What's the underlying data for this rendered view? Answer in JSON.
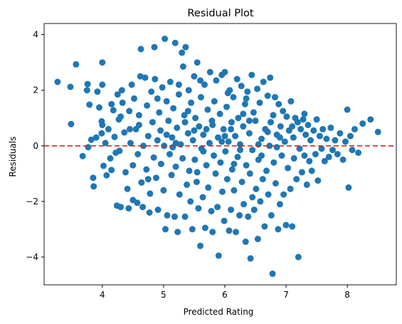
{
  "chart_data": {
    "type": "scatter",
    "title": "Residual Plot",
    "xlabel": "Predicted Rating",
    "ylabel": "Residuals",
    "xlim": [
      3.05,
      8.8
    ],
    "ylim": [
      -5.0,
      4.4
    ],
    "xticks": [
      4,
      5,
      6,
      7,
      8
    ],
    "yticks": [
      -4,
      -2,
      0,
      2,
      4
    ],
    "ytick_labels": [
      "−4",
      "−2",
      "0",
      "2",
      "4"
    ],
    "reference_line": {
      "y": 0,
      "color": "#d62728",
      "style": "dashed"
    },
    "point_color": "#1f77b4",
    "grid": false,
    "points": [
      [
        3.27,
        2.3
      ],
      [
        3.48,
        2.12
      ],
      [
        3.57,
        2.93
      ],
      [
        3.49,
        0.78
      ],
      [
        3.68,
        -0.37
      ],
      [
        3.75,
        2.0
      ],
      [
        3.76,
        2.22
      ],
      [
        3.77,
        -0.05
      ],
      [
        3.79,
        1.48
      ],
      [
        3.82,
        0.22
      ],
      [
        3.85,
        -1.15
      ],
      [
        3.86,
        -1.46
      ],
      [
        3.92,
        1.95
      ],
      [
        3.95,
        1.38
      ],
      [
        3.99,
        0.88
      ],
      [
        3.99,
        0.45
      ],
      [
        4.0,
        3.0
      ],
      [
        4.0,
        2.2
      ],
      [
        4.02,
        -0.72
      ],
      [
        4.05,
        0.1
      ],
      [
        4.07,
        -1.06
      ],
      [
        4.1,
        0.6
      ],
      [
        4.13,
        -0.45
      ],
      [
        4.15,
        -0.87
      ],
      [
        4.18,
        1.28
      ],
      [
        4.2,
        0.32
      ],
      [
        4.22,
        -0.25
      ],
      [
        4.24,
        -2.15
      ],
      [
        4.25,
        1.85
      ],
      [
        4.27,
        0.95
      ],
      [
        4.28,
        -0.18
      ],
      [
        4.3,
        -2.2
      ],
      [
        4.32,
        2.0
      ],
      [
        4.33,
        1.55
      ],
      [
        4.36,
        0.48
      ],
      [
        4.38,
        -0.95
      ],
      [
        4.41,
        -1.55
      ],
      [
        4.43,
        -2.25
      ],
      [
        4.44,
        1.25
      ],
      [
        4.46,
        0.1
      ],
      [
        4.48,
        2.2
      ],
      [
        4.5,
        -0.7
      ],
      [
        4.5,
        -1.95
      ],
      [
        4.52,
        1.7
      ],
      [
        4.55,
        0.6
      ],
      [
        4.57,
        -2.05
      ],
      [
        4.58,
        -0.3
      ],
      [
        4.6,
        1.1
      ],
      [
        4.62,
        2.5
      ],
      [
        4.63,
        3.48
      ],
      [
        4.64,
        -1.32
      ],
      [
        4.66,
        -2.2
      ],
      [
        4.67,
        0.0
      ],
      [
        4.7,
        2.45
      ],
      [
        4.72,
        -0.85
      ],
      [
        4.73,
        1.45
      ],
      [
        4.75,
        0.35
      ],
      [
        4.77,
        -2.4
      ],
      [
        4.78,
        -1.72
      ],
      [
        4.8,
        1.95
      ],
      [
        4.82,
        0.85
      ],
      [
        4.84,
        -0.42
      ],
      [
        4.85,
        3.55
      ],
      [
        4.86,
        2.4
      ],
      [
        4.88,
        -1.15
      ],
      [
        4.9,
        0.2
      ],
      [
        4.91,
        -2.3
      ],
      [
        4.93,
        1.2
      ],
      [
        4.95,
        0.55
      ],
      [
        4.96,
        -0.65
      ],
      [
        4.98,
        2.1
      ],
      [
        5.0,
        -1.6
      ],
      [
        5.01,
        0.0
      ],
      [
        5.02,
        3.85
      ],
      [
        5.03,
        -3.0
      ],
      [
        5.05,
        1.6
      ],
      [
        5.06,
        -2.5
      ],
      [
        5.08,
        0.9
      ],
      [
        5.1,
        -0.3
      ],
      [
        5.11,
        2.3
      ],
      [
        5.13,
        -1.05
      ],
      [
        5.14,
        0.3
      ],
      [
        5.16,
        1.35
      ],
      [
        5.18,
        -2.55
      ],
      [
        5.19,
        3.7
      ],
      [
        5.2,
        -0.75
      ],
      [
        5.22,
        0.65
      ],
      [
        5.23,
        -3.1
      ],
      [
        5.25,
        1.85
      ],
      [
        5.26,
        -1.75
      ],
      [
        5.28,
        0.05
      ],
      [
        5.3,
        3.35
      ],
      [
        5.31,
        -0.45
      ],
      [
        5.32,
        2.85
      ],
      [
        5.34,
        1.1
      ],
      [
        5.35,
        -2.55
      ],
      [
        5.36,
        3.55
      ],
      [
        5.38,
        -1.4
      ],
      [
        5.4,
        0.45
      ],
      [
        5.41,
        2.0
      ],
      [
        5.42,
        -0.9
      ],
      [
        5.44,
        -2.0
      ],
      [
        5.45,
        1.55
      ],
      [
        5.47,
        -3.0
      ],
      [
        5.48,
        0.2
      ],
      [
        5.5,
        2.5
      ],
      [
        5.51,
        -0.5
      ],
      [
        5.52,
        1.0
      ],
      [
        5.54,
        -1.3
      ],
      [
        5.55,
        3.0
      ],
      [
        5.57,
        -2.25
      ],
      [
        5.58,
        0.7
      ],
      [
        5.6,
        -3.6
      ],
      [
        5.61,
        1.75
      ],
      [
        5.62,
        -0.1
      ],
      [
        5.64,
        -1.85
      ],
      [
        5.65,
        0.4
      ],
      [
        5.67,
        2.2
      ],
      [
        5.68,
        -2.95
      ],
      [
        5.7,
        -0.7
      ],
      [
        5.72,
        1.3
      ],
      [
        5.73,
        -1.5
      ],
      [
        5.75,
        0.1
      ],
      [
        5.76,
        2.65
      ],
      [
        5.78,
        -2.35
      ],
      [
        5.79,
        0.9
      ],
      [
        5.8,
        -3.1
      ],
      [
        5.82,
        -0.35
      ],
      [
        5.83,
        1.6
      ],
      [
        5.85,
        -1.0
      ],
      [
        5.86,
        2.35
      ],
      [
        5.88,
        -2.2
      ],
      [
        5.89,
        0.3
      ],
      [
        5.9,
        -3.95
      ],
      [
        5.92,
        1.15
      ],
      [
        5.93,
        -0.6
      ],
      [
        5.95,
        2.55
      ],
      [
        5.96,
        -1.65
      ],
      [
        5.98,
        0.6
      ],
      [
        5.99,
        -2.7
      ],
      [
        6.0,
        2.65
      ],
      [
        6.01,
        -0.2
      ],
      [
        6.03,
        1.4
      ],
      [
        6.04,
        -1.2
      ],
      [
        6.06,
        0.15
      ],
      [
        6.07,
        -3.05
      ],
      [
        6.08,
        2.0
      ],
      [
        6.1,
        -2.3
      ],
      [
        6.11,
        0.85
      ],
      [
        6.12,
        -0.85
      ],
      [
        6.14,
        1.75
      ],
      [
        6.15,
        -1.6
      ],
      [
        6.17,
        0.35
      ],
      [
        6.18,
        -3.1
      ],
      [
        6.2,
        2.4
      ],
      [
        6.21,
        -0.4
      ],
      [
        6.22,
        1.0
      ],
      [
        6.24,
        -2.5
      ],
      [
        6.25,
        0.05
      ],
      [
        6.27,
        2.15
      ],
      [
        6.28,
        -1.3
      ],
      [
        6.3,
        0.7
      ],
      [
        6.31,
        -2.1
      ],
      [
        6.33,
        1.5
      ],
      [
        6.34,
        -3.45
      ],
      [
        6.35,
        -0.7
      ],
      [
        6.37,
        1.95
      ],
      [
        6.38,
        -2.55
      ],
      [
        6.4,
        0.45
      ],
      [
        6.41,
        -1.0
      ],
      [
        6.42,
        -4.05
      ],
      [
        6.44,
        2.55
      ],
      [
        6.45,
        -0.15
      ],
      [
        6.47,
        1.2
      ],
      [
        6.48,
        -2.3
      ],
      [
        6.5,
        0.9
      ],
      [
        6.51,
        -1.55
      ],
      [
        6.53,
        2.05
      ],
      [
        6.54,
        -3.35
      ],
      [
        6.55,
        -0.5
      ],
      [
        6.57,
        1.55
      ],
      [
        6.58,
        -2.0
      ],
      [
        6.6,
        0.25
      ],
      [
        6.62,
        -1.2
      ],
      [
        6.63,
        2.3
      ],
      [
        6.65,
        -2.9
      ],
      [
        6.66,
        0.6
      ],
      [
        6.68,
        -0.9
      ],
      [
        6.7,
        1.8
      ],
      [
        6.71,
        -1.75
      ],
      [
        6.73,
        0.0
      ],
      [
        6.74,
        2.45
      ],
      [
        6.76,
        -2.5
      ],
      [
        6.78,
        -4.6
      ],
      [
        6.79,
        1.1
      ],
      [
        6.8,
        -0.6
      ],
      [
        6.82,
        1.75
      ],
      [
        6.83,
        -1.35
      ],
      [
        6.85,
        0.4
      ],
      [
        6.87,
        -3.0
      ],
      [
        6.88,
        1.5
      ],
      [
        6.9,
        -2.1
      ],
      [
        6.91,
        0.7
      ],
      [
        6.93,
        -0.35
      ],
      [
        6.95,
        1.25
      ],
      [
        6.96,
        -1.75
      ],
      [
        6.98,
        0.15
      ],
      [
        7.0,
        -2.85
      ],
      [
        7.01,
        1.05
      ],
      [
        7.03,
        -0.8
      ],
      [
        7.05,
        0.55
      ],
      [
        7.07,
        -1.55
      ],
      [
        7.08,
        1.6
      ],
      [
        7.1,
        -2.9
      ],
      [
        7.12,
        0.3
      ],
      [
        7.13,
        -0.45
      ],
      [
        7.15,
        1.0
      ],
      [
        7.17,
        -1.2
      ],
      [
        7.19,
        0.85
      ],
      [
        7.2,
        -4.0
      ],
      [
        7.22,
        -0.1
      ],
      [
        7.24,
        0.6
      ],
      [
        7.26,
        -0.95
      ],
      [
        7.28,
        0.95
      ],
      [
        7.3,
        -0.35
      ],
      [
        7.32,
        0.4
      ],
      [
        7.34,
        -1.4
      ],
      [
        7.36,
        0.75
      ],
      [
        7.38,
        -0.55
      ],
      [
        7.4,
        0.2
      ],
      [
        7.42,
        -0.9
      ],
      [
        7.45,
        0.55
      ],
      [
        7.48,
        -0.3
      ],
      [
        7.5,
        0.95
      ],
      [
        7.52,
        -1.25
      ],
      [
        7.55,
        0.35
      ],
      [
        7.58,
        -0.1
      ],
      [
        7.6,
        0.6
      ],
      [
        7.63,
        -0.55
      ],
      [
        7.66,
        0.25
      ],
      [
        7.7,
        -0.4
      ],
      [
        7.73,
        0.65
      ],
      [
        7.76,
        -0.15
      ],
      [
        7.8,
        0.2
      ],
      [
        7.84,
        -0.3
      ],
      [
        7.88,
        0.45
      ],
      [
        7.93,
        -0.5
      ],
      [
        7.97,
        0.15
      ],
      [
        8.0,
        1.3
      ],
      [
        8.02,
        -1.5
      ],
      [
        8.05,
        0.35
      ],
      [
        8.08,
        -0.15
      ],
      [
        8.12,
        0.6
      ],
      [
        8.18,
        -0.25
      ],
      [
        8.25,
        0.8
      ],
      [
        8.38,
        0.95
      ],
      [
        8.5,
        0.5
      ],
      [
        5.05,
        0.4
      ],
      [
        5.2,
        0.1
      ],
      [
        5.35,
        0.85
      ],
      [
        5.5,
        0.55
      ],
      [
        5.65,
        -0.2
      ],
      [
        5.8,
        0.75
      ],
      [
        5.95,
        0.15
      ],
      [
        6.1,
        0.6
      ],
      [
        6.25,
        -0.15
      ],
      [
        6.4,
        0.9
      ],
      [
        6.55,
        0.05
      ],
      [
        6.7,
        0.5
      ],
      [
        6.85,
        -0.05
      ],
      [
        4.9,
        1.7
      ],
      [
        5.15,
        -0.05
      ],
      [
        5.4,
        1.25
      ],
      [
        5.7,
        0.6
      ],
      [
        6.0,
        0.35
      ],
      [
        6.3,
        1.15
      ],
      [
        6.6,
        -0.35
      ],
      [
        6.9,
        0.3
      ],
      [
        4.75,
        -1.2
      ],
      [
        5.55,
        -0.95
      ],
      [
        6.15,
        -0.65
      ],
      [
        6.45,
        -1.85
      ],
      [
        4.6,
        0.75
      ],
      [
        4.45,
        0.6
      ],
      [
        4.3,
        1.05
      ],
      [
        4.15,
        1.5
      ],
      [
        4.0,
        0.75
      ],
      [
        3.9,
        0.3
      ],
      [
        5.25,
        2.2
      ],
      [
        5.6,
        2.35
      ],
      [
        6.05,
        1.9
      ],
      [
        6.35,
        1.7
      ],
      [
        6.75,
        0.85
      ],
      [
        7.1,
        0.7
      ],
      [
        7.3,
        1.15
      ]
    ]
  }
}
